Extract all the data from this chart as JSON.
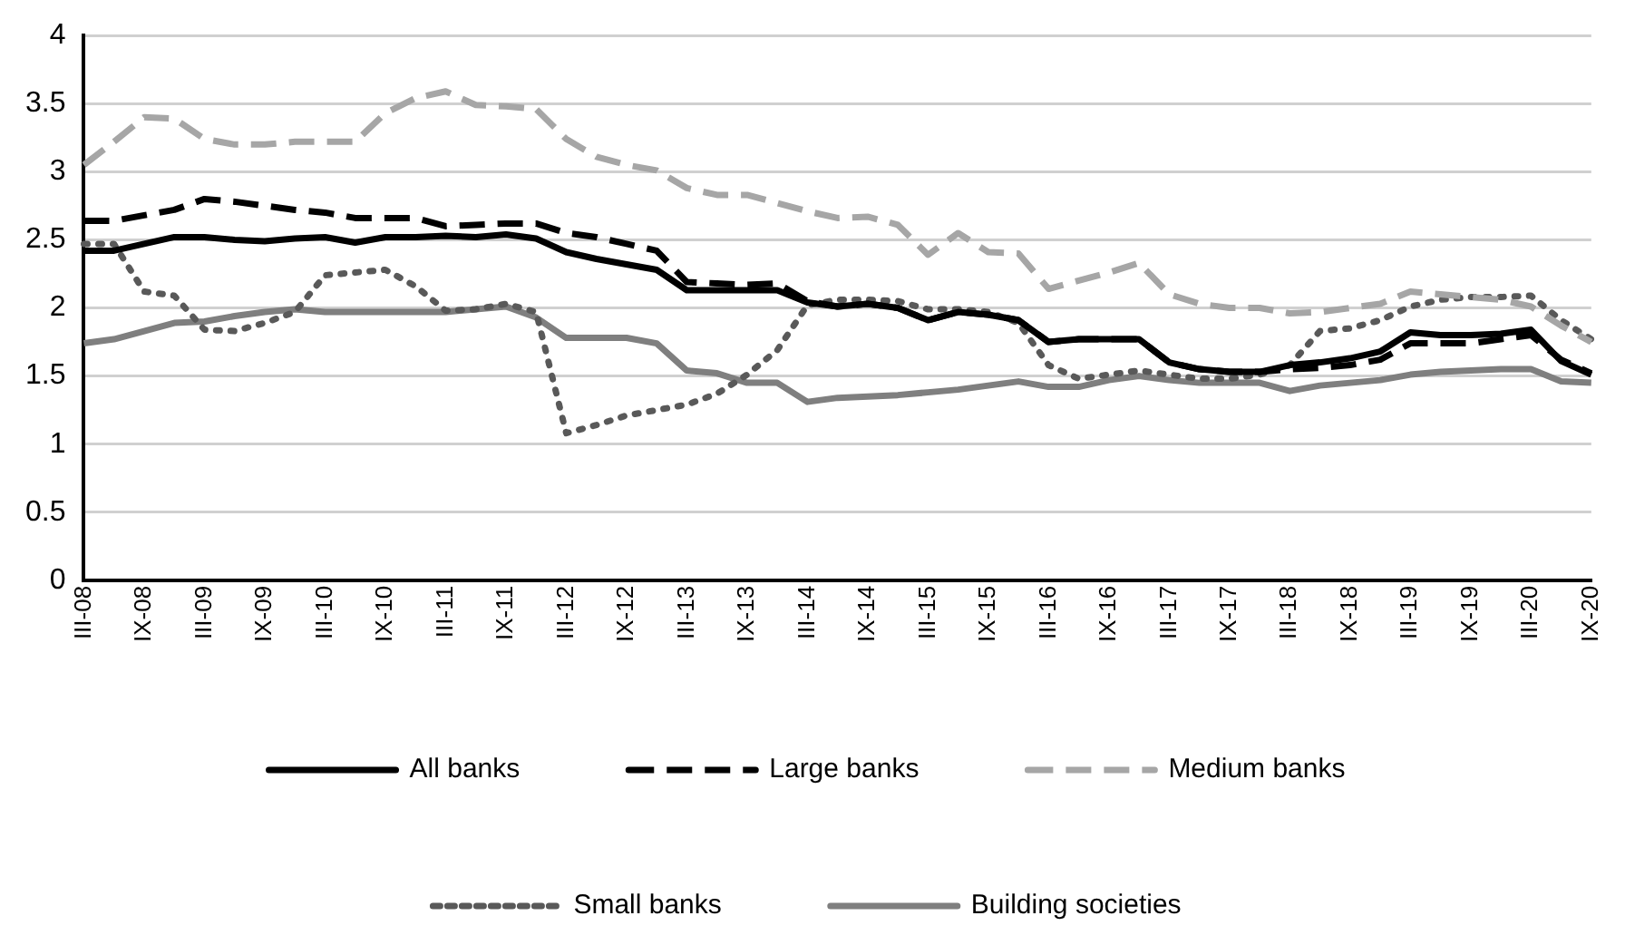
{
  "chart_data": {
    "type": "line",
    "categories": [
      "III-08",
      null,
      "IX-08",
      null,
      "III-09",
      null,
      "IX-09",
      null,
      "III-10",
      null,
      "IX-10",
      null,
      "III-11",
      null,
      "IX-11",
      null,
      "III-12",
      null,
      "IX-12",
      null,
      "III-13",
      null,
      "IX-13",
      null,
      "III-14",
      null,
      "IX-14",
      null,
      "III-15",
      null,
      "IX-15",
      null,
      "III-16",
      null,
      "IX-16",
      null,
      "III-17",
      null,
      "IX-17",
      null,
      "III-18",
      null,
      "IX-18",
      null,
      "III-19",
      null,
      "IX-19",
      null,
      "III-20",
      null,
      "IX-20"
    ],
    "series": [
      {
        "name": "All banks",
        "color": "#000000",
        "line_style": "solid",
        "values": [
          2.42,
          2.42,
          2.47,
          2.52,
          2.52,
          2.5,
          2.49,
          2.51,
          2.52,
          2.48,
          2.52,
          2.52,
          2.53,
          2.52,
          2.54,
          2.51,
          2.41,
          2.36,
          2.32,
          2.28,
          2.13,
          2.13,
          2.13,
          2.13,
          2.04,
          2.01,
          2.03,
          2.0,
          1.91,
          1.97,
          1.95,
          1.91,
          1.75,
          1.77,
          1.77,
          1.77,
          1.6,
          1.55,
          1.53,
          1.53,
          1.58,
          1.6,
          1.63,
          1.68,
          1.82,
          1.8,
          1.8,
          1.81,
          1.84,
          1.61,
          1.51
        ]
      },
      {
        "name": "Large banks",
        "color": "#000000",
        "line_style": "dashed",
        "values": [
          2.64,
          2.64,
          2.68,
          2.72,
          2.8,
          2.78,
          2.75,
          2.72,
          2.7,
          2.66,
          2.66,
          2.66,
          2.6,
          2.61,
          2.62,
          2.62,
          2.55,
          2.52,
          2.47,
          2.42,
          2.19,
          2.18,
          2.17,
          2.18,
          2.05,
          2.01,
          2.03,
          2.0,
          1.91,
          1.97,
          1.95,
          1.91,
          1.75,
          1.77,
          1.77,
          1.77,
          1.6,
          1.55,
          1.53,
          1.53,
          1.55,
          1.56,
          1.58,
          1.62,
          1.74,
          1.74,
          1.74,
          1.77,
          1.8,
          1.62,
          1.52
        ]
      },
      {
        "name": "Medium banks",
        "color": "#a6a6a6",
        "line_style": "dashed",
        "values": [
          3.05,
          3.22,
          3.4,
          3.39,
          3.24,
          3.2,
          3.2,
          3.22,
          3.22,
          3.22,
          3.43,
          3.54,
          3.59,
          3.49,
          3.48,
          3.46,
          3.24,
          3.11,
          3.05,
          3.01,
          2.88,
          2.83,
          2.83,
          2.77,
          2.71,
          2.66,
          2.67,
          2.61,
          2.39,
          2.55,
          2.41,
          2.4,
          2.14,
          2.2,
          2.26,
          2.33,
          2.1,
          2.03,
          2.0,
          2.0,
          1.96,
          1.97,
          2.0,
          2.03,
          2.12,
          2.1,
          2.08,
          2.06,
          2.01,
          1.87,
          1.75
        ]
      },
      {
        "name": "Small banks",
        "color": "#595959",
        "line_style": "dotted",
        "values": [
          2.47,
          2.47,
          2.12,
          2.09,
          1.84,
          1.83,
          1.89,
          1.97,
          2.24,
          2.26,
          2.28,
          2.16,
          1.98,
          1.99,
          2.03,
          1.97,
          1.08,
          1.14,
          1.21,
          1.25,
          1.29,
          1.37,
          1.51,
          1.69,
          2.02,
          2.06,
          2.06,
          2.05,
          1.99,
          1.99,
          1.97,
          1.89,
          1.58,
          1.48,
          1.51,
          1.54,
          1.51,
          1.48,
          1.48,
          1.51,
          1.58,
          1.83,
          1.85,
          1.91,
          2.01,
          2.06,
          2.08,
          2.08,
          2.09,
          1.91,
          1.77
        ]
      },
      {
        "name": "Building societies",
        "color": "#7f7f7f",
        "line_style": "solid",
        "values": [
          1.74,
          1.77,
          1.83,
          1.89,
          1.9,
          1.94,
          1.97,
          1.99,
          1.97,
          1.97,
          1.97,
          1.97,
          1.97,
          1.99,
          2.01,
          1.93,
          1.78,
          1.78,
          1.78,
          1.74,
          1.54,
          1.52,
          1.45,
          1.45,
          1.31,
          1.34,
          1.35,
          1.36,
          1.38,
          1.4,
          1.43,
          1.46,
          1.42,
          1.42,
          1.47,
          1.5,
          1.47,
          1.45,
          1.45,
          1.45,
          1.39,
          1.43,
          1.45,
          1.47,
          1.51,
          1.53,
          1.54,
          1.55,
          1.55,
          1.46,
          1.45
        ]
      }
    ],
    "ylim": [
      0,
      4
    ],
    "yticks": [
      0,
      0.5,
      1,
      1.5,
      2,
      2.5,
      3,
      3.5,
      4
    ],
    "grid": "y",
    "legend": "bottom",
    "marker": "none"
  }
}
